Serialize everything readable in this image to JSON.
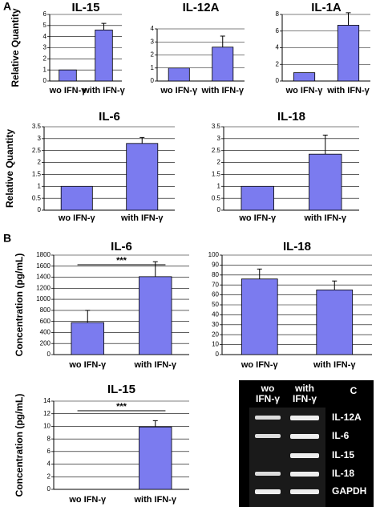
{
  "panel_labels": [
    "A",
    "B"
  ],
  "chart_data": [
    {
      "type": "bar",
      "title": "IL-15",
      "y_label": "Relative Quantity",
      "categories": [
        "wo IFN-γ",
        "with IFN-γ"
      ],
      "values": [
        1,
        4.6
      ],
      "errors": [
        null,
        0.6
      ],
      "color": "#7b7bef",
      "ylim": [
        0,
        6
      ],
      "yticks": [
        0,
        1,
        2,
        3,
        4,
        5,
        6
      ],
      "grid": true
    },
    {
      "type": "bar",
      "title": "IL-12A",
      "categories": [
        "wo IFN-γ",
        "with IFN-γ"
      ],
      "values": [
        1,
        2.6
      ],
      "errors": [
        null,
        0.85
      ],
      "color": "#7b7bef",
      "ylim": [
        0,
        4
      ],
      "yticks": [
        0,
        1,
        2,
        3,
        4
      ],
      "grid": true
    },
    {
      "type": "bar",
      "title": "IL-1A",
      "categories": [
        "wo IFN-γ",
        "with IFN-γ"
      ],
      "values": [
        1,
        6.7
      ],
      "errors": [
        null,
        1.5
      ],
      "color": "#7b7bef",
      "ylim": [
        0,
        8
      ],
      "yticks": [
        0,
        2,
        4,
        6,
        8
      ],
      "grid": true
    },
    {
      "type": "bar",
      "title": "IL-6",
      "y_label": "Relative Quantity",
      "categories": [
        "wo IFN-γ",
        "with IFN-γ"
      ],
      "values": [
        1,
        2.8
      ],
      "errors": [
        null,
        0.25
      ],
      "color": "#7b7bef",
      "ylim": [
        0,
        3.5
      ],
      "yticks": [
        0,
        0.5,
        1,
        1.5,
        2,
        2.5,
        3,
        3.5
      ],
      "grid": true
    },
    {
      "type": "bar",
      "title": "IL-18",
      "categories": [
        "wo IFN-γ",
        "with IFN-γ"
      ],
      "values": [
        1,
        2.35
      ],
      "errors": [
        null,
        0.8
      ],
      "color": "#7b7bef",
      "ylim": [
        0,
        3.5
      ],
      "yticks": [
        0,
        0.5,
        1,
        1.5,
        2,
        2.5,
        3,
        3.5
      ],
      "grid": true
    },
    {
      "type": "bar",
      "title": "IL-6",
      "y_label": "Concentration (pg/mL)",
      "annotation": "***",
      "categories": [
        "wo IFN-γ",
        "with IFN-γ"
      ],
      "values": [
        580,
        1410
      ],
      "errors": [
        220,
        270
      ],
      "color": "#7b7bef",
      "ylim": [
        0,
        1800
      ],
      "yticks": [
        0,
        200,
        400,
        600,
        800,
        1000,
        1200,
        1400,
        1600,
        1800
      ],
      "grid": true
    },
    {
      "type": "bar",
      "title": "IL-18",
      "categories": [
        "wo IFN-γ",
        "with IFN-γ"
      ],
      "values": [
        76,
        65
      ],
      "errors": [
        10,
        9
      ],
      "color": "#7b7bef",
      "ylim": [
        0,
        100
      ],
      "yticks": [
        0,
        10,
        20,
        30,
        40,
        50,
        60,
        70,
        80,
        90,
        100
      ],
      "grid": true
    },
    {
      "type": "bar",
      "title": "IL-15",
      "y_label": "Concentration (pg/mL)",
      "annotation": "***",
      "categories": [
        "wo IFN-γ",
        "with IFN-γ"
      ],
      "values": [
        0,
        9.9
      ],
      "errors": [
        null,
        1
      ],
      "color": "#7b7bef",
      "ylim": [
        0,
        14
      ],
      "yticks": [
        0,
        2,
        4,
        6,
        8,
        10,
        12,
        14
      ],
      "grid": true
    }
  ],
  "gel": {
    "columns": [
      [
        "wo",
        "IFN-γ"
      ],
      [
        "with",
        "IFN-γ"
      ]
    ],
    "label": "C",
    "bands": [
      "IL-12A",
      "IL-6",
      "IL-15",
      "IL-18",
      "GAPDH"
    ]
  }
}
